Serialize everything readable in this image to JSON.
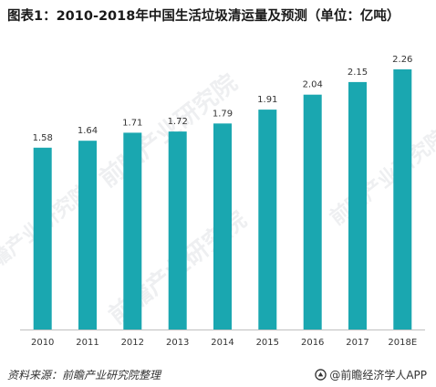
{
  "header": {
    "title": "图表1：2010-2018年中国生活垃圾清运量及预测（单位：亿吨）"
  },
  "footer": {
    "source": "资料来源：前瞻产业研究院整理",
    "brand": "@前瞻经济学人APP"
  },
  "watermark": {
    "text": "前瞻产业研究院"
  },
  "colors": {
    "bar": "#1aa7b0",
    "axis": "#bfbfbf",
    "text": "#333333"
  },
  "chart_data": {
    "type": "bar",
    "title": "图表1：2010-2018年中国生活垃圾清运量及预测（单位：亿吨）",
    "categories": [
      "2010",
      "2011",
      "2012",
      "2013",
      "2014",
      "2015",
      "2016",
      "2017",
      "2018E"
    ],
    "values": [
      1.58,
      1.64,
      1.71,
      1.72,
      1.79,
      1.91,
      2.04,
      2.15,
      2.26
    ],
    "value_labels": [
      "1.58",
      "1.64",
      "1.71",
      "1.72",
      "1.79",
      "1.91",
      "2.04",
      "2.15",
      "2.26"
    ],
    "xlabel": "",
    "ylabel": "",
    "ylim": [
      0,
      2.4
    ],
    "grid": false,
    "legend": "none"
  }
}
